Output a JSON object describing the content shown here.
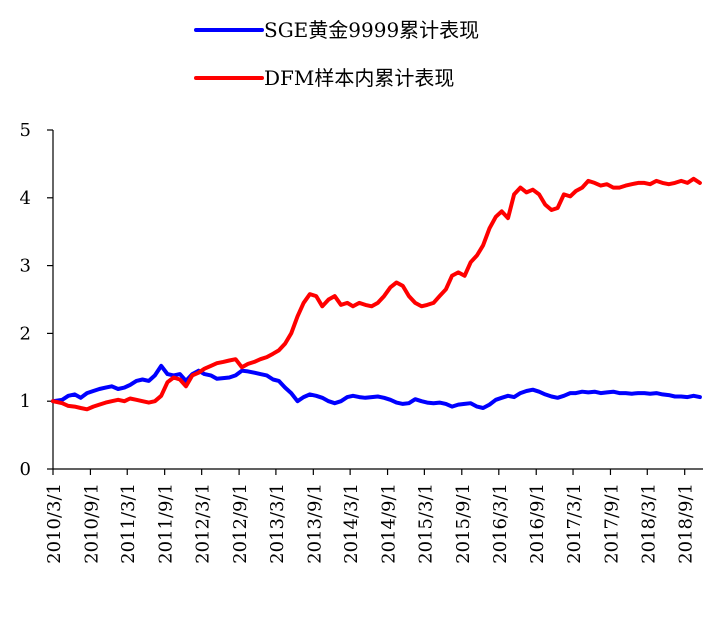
{
  "chart_data": {
    "type": "line",
    "title": "",
    "xlabel": "",
    "ylabel": "",
    "ylim": [
      0,
      5
    ],
    "yticks": [
      "0",
      "1",
      "2",
      "3",
      "4",
      "5"
    ],
    "grid": false,
    "legend_position": "top-center",
    "xtick_labels": [
      "2010/3/1",
      "2010/9/1",
      "2011/3/1",
      "2011/9/1",
      "2012/3/1",
      "2012/9/1",
      "2013/3/1",
      "2013/9/1",
      "2014/3/1",
      "2014/9/1",
      "2015/3/1",
      "2015/9/1",
      "2016/3/1",
      "2016/9/1",
      "2017/3/1",
      "2017/9/1",
      "2018/3/1",
      "2018/9/1"
    ],
    "series": [
      {
        "name": "SGE黄金9999累计表现",
        "color": "#0000ff",
        "points": [
          [
            "2010-03-01",
            1.0
          ],
          [
            "2010-04-15",
            1.02
          ],
          [
            "2010-05-15",
            1.08
          ],
          [
            "2010-06-15",
            1.1
          ],
          [
            "2010-07-15",
            1.05
          ],
          [
            "2010-08-15",
            1.12
          ],
          [
            "2010-09-15",
            1.15
          ],
          [
            "2010-10-15",
            1.18
          ],
          [
            "2010-11-15",
            1.2
          ],
          [
            "2010-12-15",
            1.22
          ],
          [
            "2011-01-15",
            1.18
          ],
          [
            "2011-02-15",
            1.2
          ],
          [
            "2011-03-15",
            1.24
          ],
          [
            "2011-04-15",
            1.3
          ],
          [
            "2011-05-15",
            1.32
          ],
          [
            "2011-06-15",
            1.3
          ],
          [
            "2011-07-15",
            1.38
          ],
          [
            "2011-08-15",
            1.52
          ],
          [
            "2011-09-15",
            1.4
          ],
          [
            "2011-10-15",
            1.38
          ],
          [
            "2011-11-15",
            1.4
          ],
          [
            "2011-12-15",
            1.3
          ],
          [
            "2012-01-15",
            1.4
          ],
          [
            "2012-02-15",
            1.45
          ],
          [
            "2012-03-15",
            1.4
          ],
          [
            "2012-04-15",
            1.38
          ],
          [
            "2012-05-15",
            1.33
          ],
          [
            "2012-06-15",
            1.34
          ],
          [
            "2012-07-15",
            1.35
          ],
          [
            "2012-08-15",
            1.38
          ],
          [
            "2012-09-15",
            1.45
          ],
          [
            "2012-10-15",
            1.44
          ],
          [
            "2012-11-15",
            1.42
          ],
          [
            "2012-12-15",
            1.4
          ],
          [
            "2013-01-15",
            1.38
          ],
          [
            "2013-02-15",
            1.32
          ],
          [
            "2013-03-15",
            1.3
          ],
          [
            "2013-04-15",
            1.2
          ],
          [
            "2013-05-15",
            1.12
          ],
          [
            "2013-06-15",
            1.0
          ],
          [
            "2013-07-15",
            1.06
          ],
          [
            "2013-08-15",
            1.1
          ],
          [
            "2013-09-15",
            1.08
          ],
          [
            "2013-10-15",
            1.05
          ],
          [
            "2013-11-15",
            1.0
          ],
          [
            "2013-12-15",
            0.97
          ],
          [
            "2014-01-15",
            1.0
          ],
          [
            "2014-02-15",
            1.06
          ],
          [
            "2014-03-15",
            1.08
          ],
          [
            "2014-04-15",
            1.06
          ],
          [
            "2014-05-15",
            1.05
          ],
          [
            "2014-06-15",
            1.06
          ],
          [
            "2014-07-15",
            1.07
          ],
          [
            "2014-08-15",
            1.05
          ],
          [
            "2014-09-15",
            1.02
          ],
          [
            "2014-10-15",
            0.98
          ],
          [
            "2014-11-15",
            0.96
          ],
          [
            "2014-12-15",
            0.97
          ],
          [
            "2015-01-15",
            1.03
          ],
          [
            "2015-02-15",
            1.0
          ],
          [
            "2015-03-15",
            0.98
          ],
          [
            "2015-04-15",
            0.97
          ],
          [
            "2015-05-15",
            0.98
          ],
          [
            "2015-06-15",
            0.96
          ],
          [
            "2015-07-15",
            0.92
          ],
          [
            "2015-08-15",
            0.95
          ],
          [
            "2015-09-15",
            0.96
          ],
          [
            "2015-10-15",
            0.97
          ],
          [
            "2015-11-15",
            0.92
          ],
          [
            "2015-12-15",
            0.9
          ],
          [
            "2016-01-15",
            0.95
          ],
          [
            "2016-02-15",
            1.02
          ],
          [
            "2016-03-15",
            1.05
          ],
          [
            "2016-04-15",
            1.08
          ],
          [
            "2016-05-15",
            1.06
          ],
          [
            "2016-06-15",
            1.12
          ],
          [
            "2016-07-15",
            1.15
          ],
          [
            "2016-08-15",
            1.17
          ],
          [
            "2016-09-15",
            1.14
          ],
          [
            "2016-10-15",
            1.1
          ],
          [
            "2016-11-15",
            1.07
          ],
          [
            "2016-12-15",
            1.05
          ],
          [
            "2017-01-15",
            1.08
          ],
          [
            "2017-02-15",
            1.12
          ],
          [
            "2017-03-15",
            1.12
          ],
          [
            "2017-04-15",
            1.14
          ],
          [
            "2017-05-15",
            1.13
          ],
          [
            "2017-06-15",
            1.14
          ],
          [
            "2017-07-15",
            1.12
          ],
          [
            "2017-08-15",
            1.13
          ],
          [
            "2017-09-15",
            1.14
          ],
          [
            "2017-10-15",
            1.12
          ],
          [
            "2017-11-15",
            1.12
          ],
          [
            "2017-12-15",
            1.11
          ],
          [
            "2018-01-15",
            1.12
          ],
          [
            "2018-02-15",
            1.12
          ],
          [
            "2018-03-15",
            1.11
          ],
          [
            "2018-04-15",
            1.12
          ],
          [
            "2018-05-15",
            1.1
          ],
          [
            "2018-06-15",
            1.09
          ],
          [
            "2018-07-15",
            1.07
          ],
          [
            "2018-08-15",
            1.07
          ],
          [
            "2018-09-15",
            1.06
          ],
          [
            "2018-10-15",
            1.08
          ],
          [
            "2018-11-15",
            1.06
          ]
        ]
      },
      {
        "name": "DFM样本内累计表现",
        "color": "#ff0000",
        "points": [
          [
            "2010-03-01",
            1.0
          ],
          [
            "2010-04-15",
            0.97
          ],
          [
            "2010-05-15",
            0.93
          ],
          [
            "2010-06-15",
            0.92
          ],
          [
            "2010-07-15",
            0.9
          ],
          [
            "2010-08-15",
            0.88
          ],
          [
            "2010-09-15",
            0.92
          ],
          [
            "2010-10-15",
            0.95
          ],
          [
            "2010-11-15",
            0.98
          ],
          [
            "2010-12-15",
            1.0
          ],
          [
            "2011-01-15",
            1.02
          ],
          [
            "2011-02-15",
            1.0
          ],
          [
            "2011-03-15",
            1.04
          ],
          [
            "2011-04-15",
            1.02
          ],
          [
            "2011-05-15",
            1.0
          ],
          [
            "2011-06-15",
            0.98
          ],
          [
            "2011-07-15",
            1.0
          ],
          [
            "2011-08-15",
            1.08
          ],
          [
            "2011-09-15",
            1.28
          ],
          [
            "2011-10-15",
            1.35
          ],
          [
            "2011-11-15",
            1.32
          ],
          [
            "2011-12-15",
            1.22
          ],
          [
            "2012-01-15",
            1.38
          ],
          [
            "2012-02-15",
            1.42
          ],
          [
            "2012-03-15",
            1.48
          ],
          [
            "2012-04-15",
            1.52
          ],
          [
            "2012-05-15",
            1.56
          ],
          [
            "2012-06-15",
            1.58
          ],
          [
            "2012-07-15",
            1.6
          ],
          [
            "2012-08-15",
            1.62
          ],
          [
            "2012-09-15",
            1.5
          ],
          [
            "2012-10-15",
            1.55
          ],
          [
            "2012-11-15",
            1.58
          ],
          [
            "2012-12-15",
            1.62
          ],
          [
            "2013-01-15",
            1.65
          ],
          [
            "2013-02-15",
            1.7
          ],
          [
            "2013-03-15",
            1.75
          ],
          [
            "2013-04-15",
            1.85
          ],
          [
            "2013-05-15",
            2.0
          ],
          [
            "2013-06-15",
            2.25
          ],
          [
            "2013-07-15",
            2.45
          ],
          [
            "2013-08-15",
            2.58
          ],
          [
            "2013-09-15",
            2.55
          ],
          [
            "2013-10-15",
            2.4
          ],
          [
            "2013-11-15",
            2.5
          ],
          [
            "2013-12-15",
            2.55
          ],
          [
            "2014-01-15",
            2.42
          ],
          [
            "2014-02-15",
            2.45
          ],
          [
            "2014-03-15",
            2.4
          ],
          [
            "2014-04-15",
            2.45
          ],
          [
            "2014-05-15",
            2.42
          ],
          [
            "2014-06-15",
            2.4
          ],
          [
            "2014-07-15",
            2.45
          ],
          [
            "2014-08-15",
            2.55
          ],
          [
            "2014-09-15",
            2.68
          ],
          [
            "2014-10-15",
            2.75
          ],
          [
            "2014-11-15",
            2.7
          ],
          [
            "2014-12-15",
            2.55
          ],
          [
            "2015-01-15",
            2.45
          ],
          [
            "2015-02-15",
            2.4
          ],
          [
            "2015-03-15",
            2.42
          ],
          [
            "2015-04-15",
            2.45
          ],
          [
            "2015-05-15",
            2.55
          ],
          [
            "2015-06-15",
            2.65
          ],
          [
            "2015-07-15",
            2.85
          ],
          [
            "2015-08-15",
            2.9
          ],
          [
            "2015-09-15",
            2.85
          ],
          [
            "2015-10-15",
            3.05
          ],
          [
            "2015-11-15",
            3.15
          ],
          [
            "2015-12-15",
            3.3
          ],
          [
            "2016-01-15",
            3.55
          ],
          [
            "2016-02-15",
            3.72
          ],
          [
            "2016-03-15",
            3.8
          ],
          [
            "2016-04-15",
            3.7
          ],
          [
            "2016-05-15",
            4.05
          ],
          [
            "2016-06-15",
            4.15
          ],
          [
            "2016-07-15",
            4.08
          ],
          [
            "2016-08-15",
            4.12
          ],
          [
            "2016-09-15",
            4.05
          ],
          [
            "2016-10-15",
            3.9
          ],
          [
            "2016-11-15",
            3.82
          ],
          [
            "2016-12-15",
            3.85
          ],
          [
            "2017-01-15",
            4.05
          ],
          [
            "2017-02-15",
            4.02
          ],
          [
            "2017-03-15",
            4.1
          ],
          [
            "2017-04-15",
            4.15
          ],
          [
            "2017-05-15",
            4.25
          ],
          [
            "2017-06-15",
            4.22
          ],
          [
            "2017-07-15",
            4.18
          ],
          [
            "2017-08-15",
            4.2
          ],
          [
            "2017-09-15",
            4.15
          ],
          [
            "2017-10-15",
            4.15
          ],
          [
            "2017-11-15",
            4.18
          ],
          [
            "2017-12-15",
            4.2
          ],
          [
            "2018-01-15",
            4.22
          ],
          [
            "2018-02-15",
            4.22
          ],
          [
            "2018-03-15",
            4.2
          ],
          [
            "2018-04-15",
            4.25
          ],
          [
            "2018-05-15",
            4.22
          ],
          [
            "2018-06-15",
            4.2
          ],
          [
            "2018-07-15",
            4.22
          ],
          [
            "2018-08-15",
            4.25
          ],
          [
            "2018-09-15",
            4.22
          ],
          [
            "2018-10-15",
            4.28
          ],
          [
            "2018-11-15",
            4.22
          ]
        ]
      }
    ]
  }
}
